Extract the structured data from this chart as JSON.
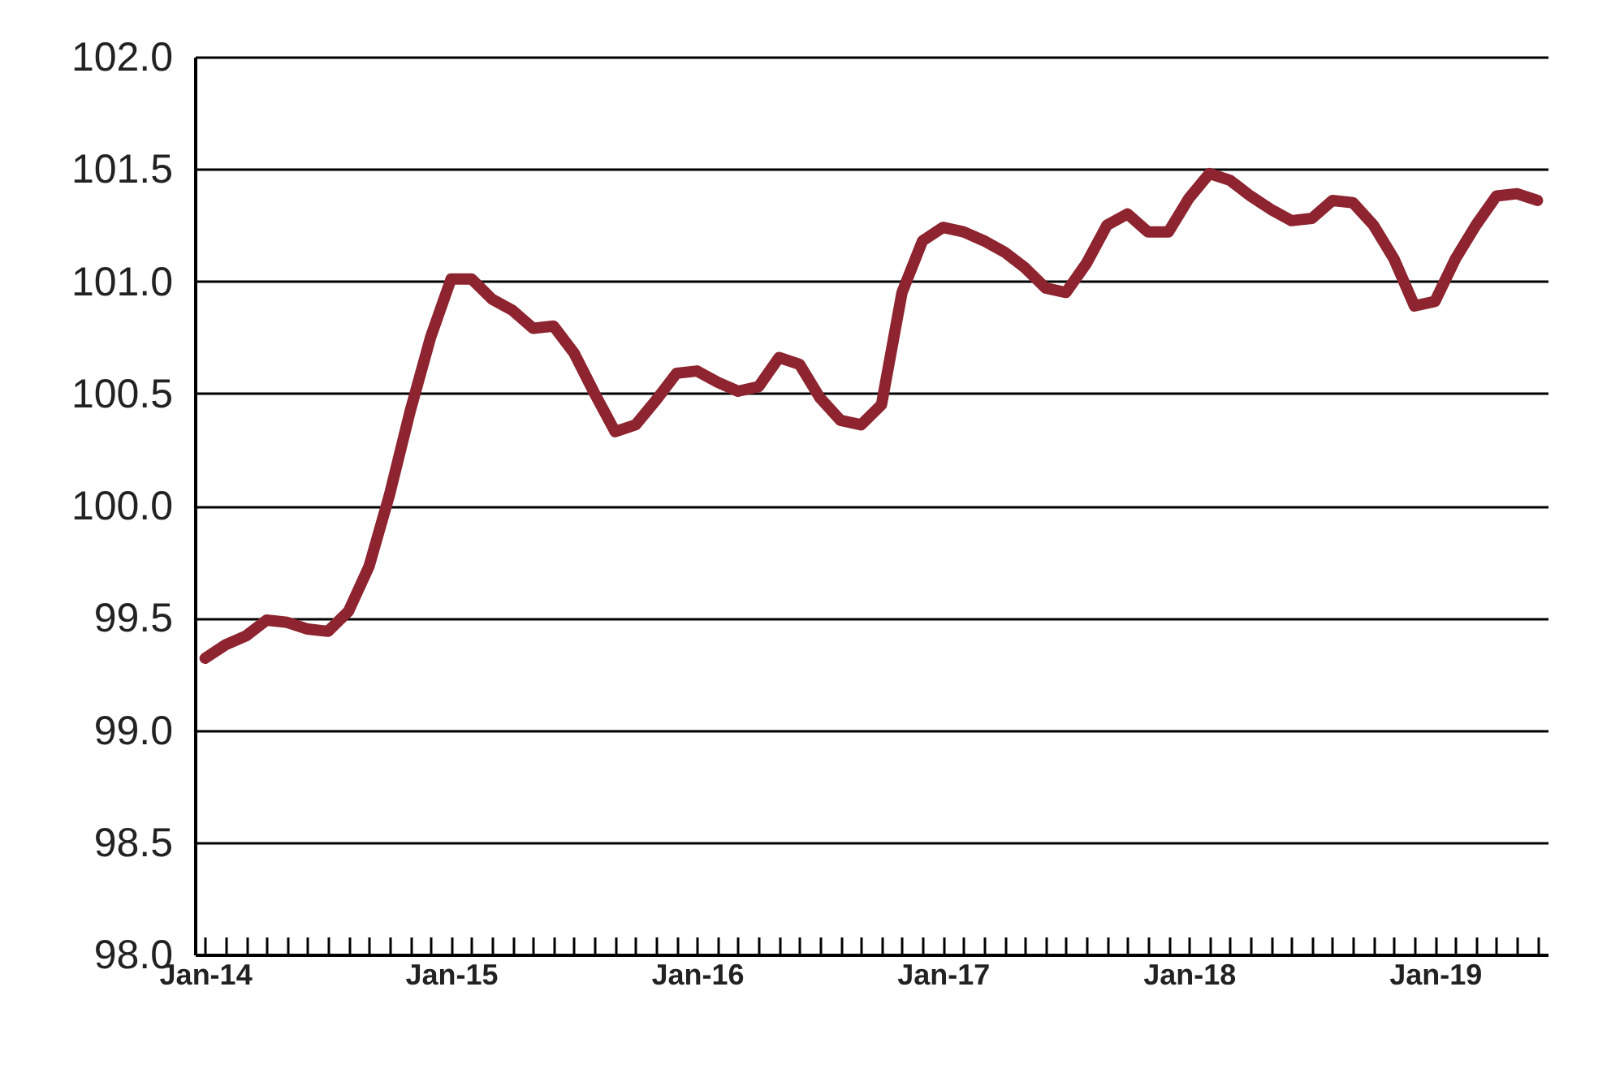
{
  "chart_data": {
    "type": "line",
    "categories": [
      "Jan-14",
      null,
      null,
      null,
      null,
      null,
      null,
      null,
      null,
      null,
      null,
      null,
      "Jan-15",
      null,
      null,
      null,
      null,
      null,
      null,
      null,
      null,
      null,
      null,
      null,
      "Jan-16",
      null,
      null,
      null,
      null,
      null,
      null,
      null,
      null,
      null,
      null,
      null,
      "Jan-17",
      null,
      null,
      null,
      null,
      null,
      null,
      null,
      null,
      null,
      null,
      null,
      "Jan-18",
      null,
      null,
      null,
      null,
      null,
      null,
      null,
      null,
      null,
      null,
      null,
      "Jan-19",
      null,
      null,
      null,
      null,
      null
    ],
    "series": [
      {
        "color": "#8e2430",
        "values": [
          99.32,
          99.38,
          99.42,
          99.49,
          99.48,
          99.45,
          99.44,
          99.53,
          99.73,
          100.05,
          100.42,
          100.75,
          101.01,
          101.01,
          100.92,
          100.87,
          100.79,
          100.8,
          100.68,
          100.5,
          100.33,
          100.36,
          100.47,
          100.59,
          100.6,
          100.55,
          100.51,
          100.53,
          100.66,
          100.63,
          100.48,
          100.38,
          100.36,
          100.45,
          100.95,
          101.18,
          101.24,
          101.22,
          101.18,
          101.13,
          101.06,
          100.97,
          100.95,
          101.08,
          101.25,
          101.3,
          101.22,
          101.22,
          101.37,
          101.48,
          101.45,
          101.38,
          101.32,
          101.27,
          101.28,
          101.36,
          101.35,
          101.25,
          101.1,
          100.89,
          100.91,
          101.1,
          101.25,
          101.38,
          101.39,
          101.36
        ]
      }
    ],
    "ylim": [
      98,
      102
    ],
    "yticks": [
      {
        "value": 98,
        "label": "98.0"
      },
      {
        "value": 98.5,
        "label": "98.5"
      },
      {
        "value": 99,
        "label": "99.0"
      },
      {
        "value": 99.5,
        "label": "99.5"
      },
      {
        "value": 100,
        "label": "100.0"
      },
      {
        "value": 100.5,
        "label": "100.5"
      },
      {
        "value": 101,
        "label": "101.0"
      },
      {
        "value": 101.5,
        "label": "101.5"
      },
      {
        "value": 102,
        "label": "102.0"
      }
    ],
    "grid": "y",
    "legend": false,
    "marker": "none",
    "line_style": "solid"
  }
}
